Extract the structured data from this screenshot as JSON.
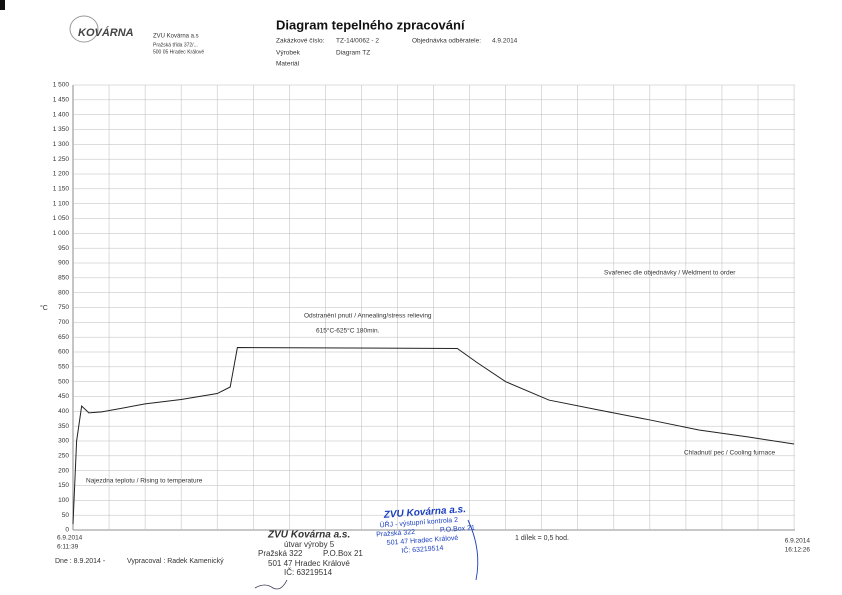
{
  "header": {
    "logo": "KOVÁRNA",
    "company": "ZVU Kovárna a.s",
    "address_1": "Pražská třída 372/...",
    "address_2": "500 05 Hradec Králové",
    "title": "Diagram tepelného zpracování",
    "order_label": "Zakázkové číslo:",
    "order_value": "TZ-14/0062 - 2",
    "customer_order_label": "Objednávka odběratele:",
    "customer_order_value": "4.9.2014",
    "product_label": "Výrobek",
    "product_value": "Diagram TZ",
    "material_label": "Materiál"
  },
  "chart_data": {
    "type": "line",
    "ylabel": "°C",
    "x": [
      0,
      0.05,
      0.12,
      0.22,
      0.4,
      1.0,
      1.5,
      2.0,
      2.18,
      2.28,
      5.33,
      5.6,
      6.0,
      6.6,
      7.3,
      8.0,
      8.68,
      9.38,
      10.0
    ],
    "values": [
      20,
      300,
      418,
      395,
      398,
      425,
      440,
      460,
      482,
      615,
      612,
      565,
      500,
      438,
      404,
      371,
      337,
      313,
      290
    ],
    "color": "#222222",
    "xlim": [
      0,
      10.013
    ],
    "ylim": [
      0,
      1500
    ],
    "yticks": [
      0,
      50,
      100,
      150,
      200,
      250,
      300,
      350,
      400,
      450,
      500,
      550,
      600,
      650,
      700,
      750,
      800,
      850,
      900,
      950,
      {
        "value": 1000,
        "label": "1 000"
      },
      {
        "value": 1050,
        "label": "1 050"
      },
      {
        "value": 1100,
        "label": "1 100"
      },
      {
        "value": 1150,
        "label": "1 150"
      },
      {
        "value": 1200,
        "label": "1 200"
      },
      {
        "value": 1250,
        "label": "1 250"
      },
      {
        "value": 1300,
        "label": "1 300"
      },
      {
        "value": 1350,
        "label": "1 350"
      },
      {
        "value": 1400,
        "label": "1 400"
      },
      {
        "value": 1450,
        "label": "1 450"
      },
      {
        "value": 1500,
        "label": "1 500"
      }
    ],
    "grid": true,
    "x_grid_step": 0.5,
    "x_grid_step_label": "1 dílek = 0,5 hod.",
    "x_start_label": [
      "6.9.2014",
      "6:11:39"
    ],
    "x_end_label": [
      "6.9.2014",
      "16:12:26"
    ],
    "annotations": [
      "Odstranění pnutí / Annealing/stress relieving",
      "615°C-625°C 180min.",
      "Svařenec dle objednávky / Weldment to order",
      "Chladnutí pec / Cooling furnace",
      "Najezdna teplotu / Rising to temperature"
    ]
  },
  "footer": {
    "date": "Dne : 8.9.2014 -",
    "author": "Vypracoval : Radek Kamenický"
  },
  "stamp_black": [
    "ZVU Kovárna a.s.",
    "útvar výroby 5",
    "Pražská 322",
    "P.O.Box 21",
    "501 47 Hradec Králové",
    "IČ: 63219514"
  ],
  "stamp_blue": [
    "ZVU Kovárna a.s.",
    "ÚŘJ - výstupní kontrola 2",
    "Pražská 322",
    "P.O.Box 21",
    "501 47 Hradec Králové",
    "IČ: 63219514"
  ]
}
